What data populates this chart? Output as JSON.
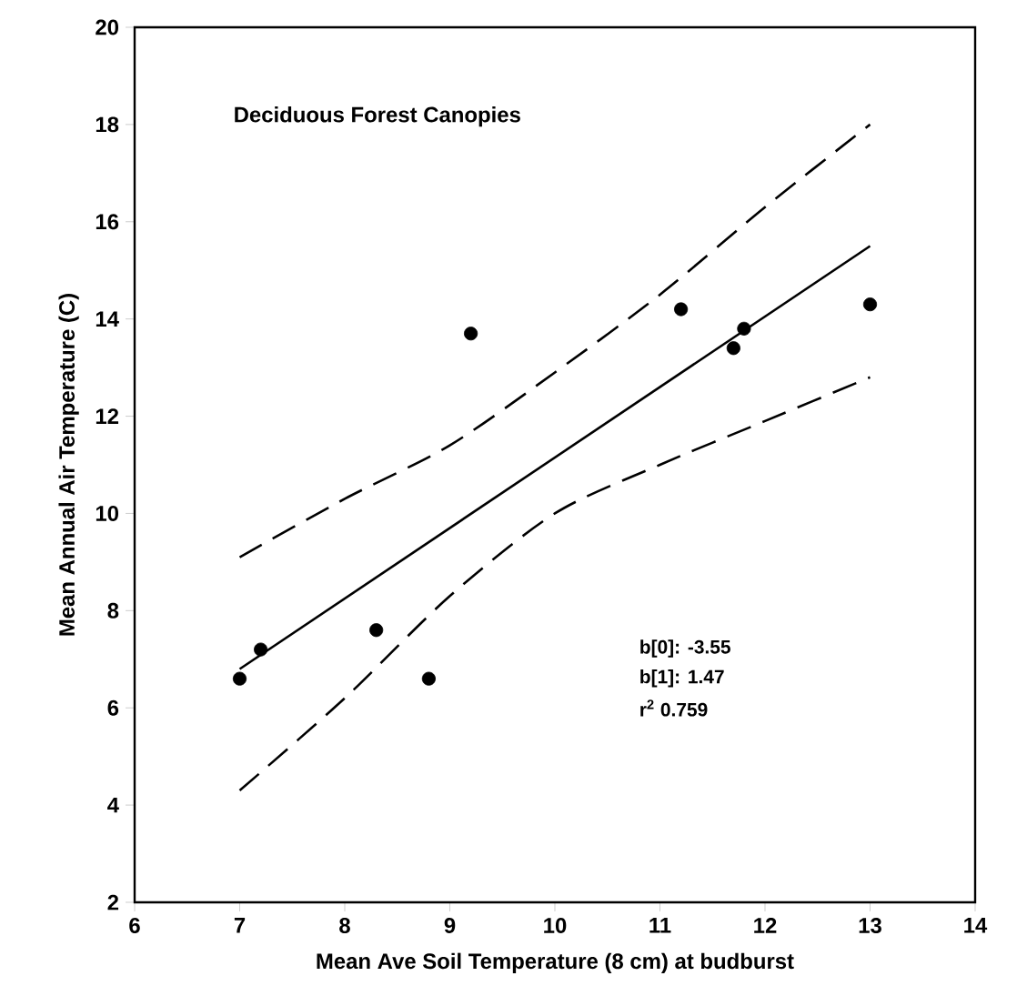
{
  "chart_data": {
    "type": "scatter",
    "title": "Deciduous Forest Canopies",
    "xlabel": "Mean Ave Soil Temperature (8 cm) at budburst",
    "ylabel": "Mean Annual Air Temperature (C)",
    "xlim": [
      6,
      14
    ],
    "xticks": [
      6,
      7,
      8,
      9,
      10,
      11,
      12,
      13,
      14
    ],
    "ylim": [
      2,
      20
    ],
    "yticks": [
      2,
      4,
      6,
      8,
      10,
      12,
      14,
      16,
      18,
      20
    ],
    "marker": "circle",
    "grid": false,
    "series": [
      {
        "color": "#000000",
        "x": [
          7.0,
          7.2,
          8.3,
          8.8,
          9.2,
          11.2,
          11.7,
          11.8,
          13.0
        ],
        "values": [
          6.6,
          7.2,
          7.6,
          6.6,
          13.7,
          14.2,
          13.4,
          13.8,
          14.3
        ]
      },
      {
        "type": "line",
        "color": "#000000",
        "line_style": "solid",
        "marker": "none",
        "x": [
          7,
          13
        ],
        "values": [
          6.8,
          15.5
        ]
      },
      {
        "type": "line",
        "color": "#000000",
        "line_style": "dashed",
        "marker": "none",
        "x": [
          7,
          8,
          9,
          10,
          11,
          12,
          13
        ],
        "values": [
          9.1,
          10.3,
          11.4,
          12.9,
          14.5,
          16.3,
          18.0
        ]
      },
      {
        "type": "line",
        "color": "#000000",
        "line_style": "dashed",
        "marker": "none",
        "x": [
          7,
          8,
          9,
          10,
          11,
          12,
          13
        ],
        "values": [
          4.3,
          6.2,
          8.3,
          10.0,
          11.0,
          11.9,
          12.8
        ]
      }
    ],
    "annotations": [
      "b[0]: -3.55",
      "b[1]: 1.47",
      "r$^{2}$   0.759"
    ]
  }
}
